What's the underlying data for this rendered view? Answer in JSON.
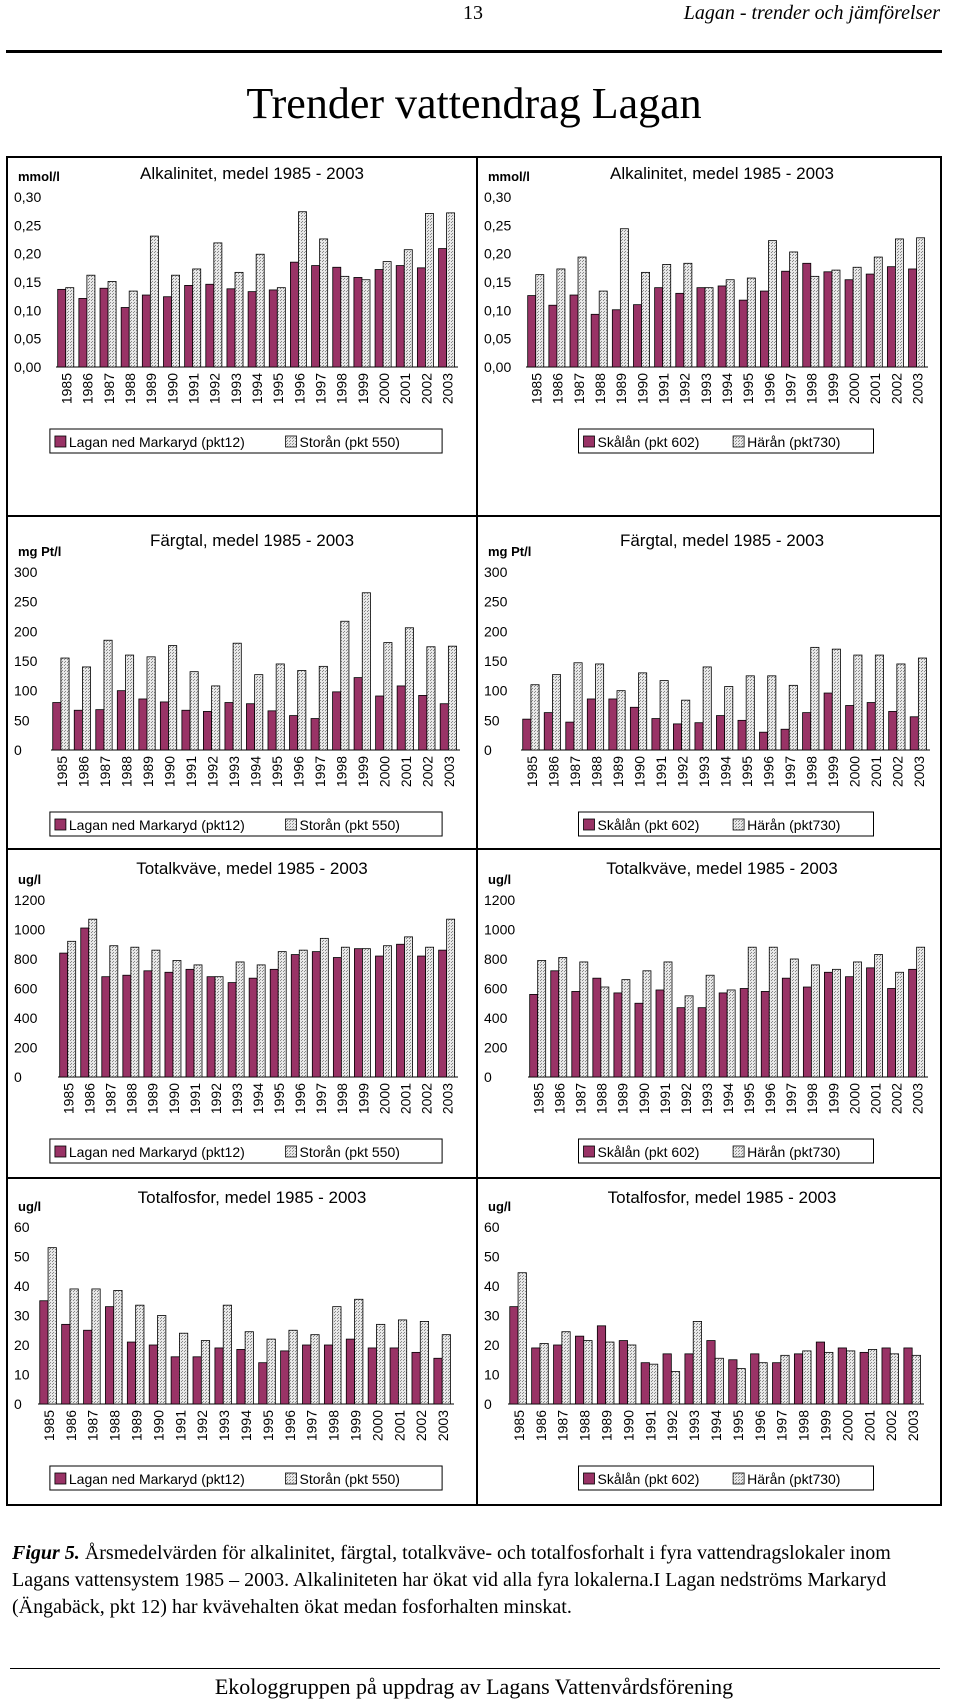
{
  "header": {
    "page_number": "13",
    "running_title": "Lagan - trender och jämförelser"
  },
  "title": "Trender vattendrag Lagan",
  "charts": [
    {
      "unit": "mmol/l",
      "title": "Alkalinitet, medel 1985 - 2003",
      "yticks": [
        "0,00",
        "0,05",
        "0,10",
        "0,15",
        "0,20",
        "0,25",
        "0,30"
      ],
      "ymax": 0.3,
      "series_names": [
        "Lagan ned Markaryd (pkt12)",
        "Storån (pkt 550)"
      ]
    },
    {
      "unit": "mmol/l",
      "title": "Alkalinitet, medel 1985 - 2003",
      "yticks": [
        "0,00",
        "0,05",
        "0,10",
        "0,15",
        "0,20",
        "0,25",
        "0,30"
      ],
      "ymax": 0.3,
      "series_names": [
        "Skålån (pkt 602)",
        "Härån (pkt730)"
      ]
    },
    {
      "unit": "mg Pt/l",
      "title": "Färgtal, medel 1985 - 2003",
      "yticks": [
        "0",
        "50",
        "100",
        "150",
        "200",
        "250",
        "300"
      ],
      "ymax": 300,
      "series_names": [
        "Lagan ned Markaryd (pkt12)",
        "Storån (pkt 550)"
      ]
    },
    {
      "unit": "mg Pt/l",
      "title": "Färgtal, medel 1985 - 2003",
      "yticks": [
        "0",
        "50",
        "100",
        "150",
        "200",
        "250",
        "300"
      ],
      "ymax": 300,
      "series_names": [
        "Skålån (pkt 602)",
        "Härån (pkt730)"
      ]
    },
    {
      "unit": "ug/l",
      "title": "Totalkväve, medel 1985 - 2003",
      "yticks": [
        "0",
        "200",
        "400",
        "600",
        "800",
        "1000",
        "1200"
      ],
      "ymax": 1200,
      "series_names": [
        "Lagan ned Markaryd (pkt12)",
        "Storån (pkt 550)"
      ]
    },
    {
      "unit": "ug/l",
      "title": "Totalkväve, medel 1985 - 2003",
      "yticks": [
        "0",
        "200",
        "400",
        "600",
        "800",
        "1000",
        "1200"
      ],
      "ymax": 1200,
      "series_names": [
        "Skålån (pkt 602)",
        "Härån (pkt730)"
      ]
    },
    {
      "unit": "ug/l",
      "title": "Totalfosfor, medel 1985 - 2003",
      "yticks": [
        "0",
        "10",
        "20",
        "30",
        "40",
        "50",
        "60"
      ],
      "ymax": 60,
      "series_names": [
        "Lagan ned Markaryd (pkt12)",
        "Storån (pkt 550)"
      ]
    },
    {
      "unit": "ug/l",
      "title": "Totalfosfor, medel 1985 - 2003",
      "yticks": [
        "0",
        "10",
        "20",
        "30",
        "40",
        "50",
        "60"
      ],
      "ymax": 60,
      "series_names": [
        "Skålån (pkt 602)",
        "Härån (pkt730)"
      ]
    }
  ],
  "chart_data": [
    {
      "type": "bar",
      "title": "Alkalinitet, medel 1985 - 2003",
      "ylabel": "mmol/l",
      "ylim": [
        0,
        0.3
      ],
      "categories": [
        "1985",
        "1986",
        "1987",
        "1988",
        "1989",
        "1990",
        "1991",
        "1992",
        "1993",
        "1994",
        "1995",
        "1996",
        "1997",
        "1998",
        "1999",
        "2000",
        "2001",
        "2002",
        "2003"
      ],
      "series": [
        {
          "name": "Lagan ned Markaryd (pkt12)",
          "values": [
            0.137,
            0.121,
            0.139,
            0.105,
            0.127,
            0.124,
            0.144,
            0.146,
            0.138,
            0.133,
            0.136,
            0.185,
            0.179,
            0.176,
            0.158,
            0.172,
            0.179,
            0.175,
            0.209
          ]
        },
        {
          "name": "Storån (pkt 550)",
          "values": [
            0.14,
            0.162,
            0.151,
            0.134,
            0.231,
            0.162,
            0.173,
            0.219,
            0.167,
            0.199,
            0.14,
            0.274,
            0.226,
            0.16,
            0.154,
            0.186,
            0.207,
            0.271,
            0.272
          ]
        }
      ]
    },
    {
      "type": "bar",
      "title": "Alkalinitet, medel 1985 - 2003",
      "ylabel": "mmol/l",
      "ylim": [
        0,
        0.3
      ],
      "categories": [
        "1985",
        "1986",
        "1987",
        "1988",
        "1989",
        "1990",
        "1991",
        "1992",
        "1993",
        "1994",
        "1995",
        "1996",
        "1997",
        "1998",
        "1999",
        "2000",
        "2001",
        "2002",
        "2003"
      ],
      "series": [
        {
          "name": "Skålån (pkt 602)",
          "values": [
            0.126,
            0.109,
            0.127,
            0.093,
            0.101,
            0.11,
            0.14,
            0.13,
            0.14,
            0.143,
            0.118,
            0.134,
            0.169,
            0.183,
            0.168,
            0.154,
            0.164,
            0.177,
            0.173
          ]
        },
        {
          "name": "Härån (pkt730)",
          "values": [
            0.163,
            0.173,
            0.194,
            0.134,
            0.244,
            0.167,
            0.181,
            0.183,
            0.14,
            0.154,
            0.157,
            0.223,
            0.203,
            0.16,
            0.171,
            0.176,
            0.194,
            0.226,
            0.228
          ]
        }
      ]
    },
    {
      "type": "bar",
      "title": "Färgtal, medel 1985 - 2003",
      "ylabel": "mg Pt/l",
      "ylim": [
        0,
        300
      ],
      "categories": [
        "1985",
        "1986",
        "1987",
        "1988",
        "1989",
        "1990",
        "1991",
        "1992",
        "1993",
        "1994",
        "1995",
        "1996",
        "1997",
        "1998",
        "1999",
        "2000",
        "2001",
        "2002",
        "2003"
      ],
      "series": [
        {
          "name": "Lagan ned Markaryd (pkt12)",
          "values": [
            80,
            67,
            68,
            100,
            86,
            81,
            67,
            65,
            80,
            78,
            66,
            58,
            53,
            98,
            122,
            91,
            108,
            92,
            78
          ]
        },
        {
          "name": "Storån (pkt 550)",
          "values": [
            155,
            140,
            185,
            160,
            157,
            176,
            132,
            108,
            180,
            127,
            145,
            134,
            141,
            217,
            265,
            181,
            206,
            174,
            175
          ]
        }
      ]
    },
    {
      "type": "bar",
      "title": "Färgtal, medel 1985 - 2003",
      "ylabel": "mg Pt/l",
      "ylim": [
        0,
        300
      ],
      "categories": [
        "1985",
        "1986",
        "1987",
        "1988",
        "1989",
        "1990",
        "1991",
        "1992",
        "1993",
        "1994",
        "1995",
        "1996",
        "1997",
        "1998",
        "1999",
        "2000",
        "2001",
        "2002",
        "2003"
      ],
      "series": [
        {
          "name": "Skålån (pkt 602)",
          "values": [
            52,
            63,
            47,
            86,
            86,
            72,
            53,
            44,
            46,
            58,
            50,
            30,
            35,
            63,
            96,
            75,
            80,
            65,
            56
          ]
        },
        {
          "name": "Härån (pkt730)",
          "values": [
            110,
            127,
            147,
            145,
            100,
            130,
            117,
            84,
            140,
            107,
            125,
            125,
            109,
            173,
            170,
            160,
            160,
            145,
            155
          ]
        }
      ]
    },
    {
      "type": "bar",
      "title": "Totalkväve, medel 1985 - 2003",
      "ylabel": "ug/l",
      "ylim": [
        0,
        1200
      ],
      "categories": [
        "1985",
        "1986",
        "1987",
        "1988",
        "1989",
        "1990",
        "1991",
        "1992",
        "1993",
        "1994",
        "1995",
        "1996",
        "1997",
        "1998",
        "1999",
        "2000",
        "2001",
        "2002",
        "2003"
      ],
      "series": [
        {
          "name": "Lagan ned Markaryd (pkt12)",
          "values": [
            840,
            1010,
            680,
            690,
            720,
            710,
            730,
            680,
            640,
            670,
            730,
            830,
            850,
            810,
            870,
            820,
            900,
            820,
            860
          ]
        },
        {
          "name": "Storån (pkt 550)",
          "values": [
            920,
            1070,
            890,
            880,
            860,
            790,
            760,
            680,
            780,
            760,
            850,
            860,
            940,
            880,
            870,
            890,
            950,
            880,
            1070
          ]
        }
      ]
    },
    {
      "type": "bar",
      "title": "Totalkväve, medel 1985 - 2003",
      "ylabel": "ug/l",
      "ylim": [
        0,
        1200
      ],
      "categories": [
        "1985",
        "1986",
        "1987",
        "1988",
        "1989",
        "1990",
        "1991",
        "1992",
        "1993",
        "1994",
        "1995",
        "1996",
        "1997",
        "1998",
        "1999",
        "2000",
        "2001",
        "2002",
        "2003"
      ],
      "series": [
        {
          "name": "Skålån (pkt 602)",
          "values": [
            560,
            720,
            580,
            670,
            570,
            500,
            590,
            470,
            470,
            570,
            600,
            580,
            670,
            610,
            710,
            680,
            740,
            600,
            730
          ]
        },
        {
          "name": "Härån (pkt730)",
          "values": [
            790,
            810,
            780,
            610,
            660,
            720,
            780,
            550,
            690,
            590,
            880,
            880,
            800,
            760,
            730,
            780,
            830,
            710,
            880
          ]
        }
      ]
    },
    {
      "type": "bar",
      "title": "Totalfosfor, medel 1985 - 2003",
      "ylabel": "ug/l",
      "ylim": [
        0,
        60
      ],
      "categories": [
        "1985",
        "1986",
        "1987",
        "1988",
        "1989",
        "1990",
        "1991",
        "1992",
        "1993",
        "1994",
        "1995",
        "1996",
        "1997",
        "1998",
        "1999",
        "2000",
        "2001",
        "2002",
        "2003"
      ],
      "series": [
        {
          "name": "Lagan ned Markaryd (pkt12)",
          "values": [
            35,
            27,
            25,
            33,
            21,
            20,
            16,
            16,
            19,
            18.5,
            14,
            18,
            20,
            20,
            22,
            19,
            19,
            17.5,
            15.5
          ]
        },
        {
          "name": "Storån (pkt 550)",
          "values": [
            53,
            39,
            39,
            38.5,
            33.5,
            30,
            24,
            21.5,
            33.5,
            24.5,
            22,
            25,
            23.5,
            33,
            35.5,
            27,
            28.5,
            28,
            23.5
          ]
        }
      ]
    },
    {
      "type": "bar",
      "title": "Totalfosfor, medel 1985 - 2003",
      "ylabel": "ug/l",
      "ylim": [
        0,
        60
      ],
      "categories": [
        "1985",
        "1986",
        "1987",
        "1988",
        "1989",
        "1990",
        "1991",
        "1992",
        "1993",
        "1994",
        "1995",
        "1996",
        "1997",
        "1998",
        "1999",
        "2000",
        "2001",
        "2002",
        "2003"
      ],
      "series": [
        {
          "name": "Skålån (pkt 602)",
          "values": [
            33,
            19,
            20,
            23,
            26.5,
            21.5,
            14,
            17,
            17,
            21.5,
            15,
            17,
            14,
            17,
            21,
            19,
            17.5,
            19,
            19
          ]
        },
        {
          "name": "Härån (pkt730)",
          "values": [
            44.5,
            20.5,
            24.5,
            21.5,
            21,
            20,
            13.5,
            11,
            28,
            15.5,
            12,
            14,
            16.5,
            18,
            17.5,
            18,
            18.5,
            17,
            16.5
          ]
        }
      ]
    }
  ],
  "caption": {
    "label": "Figur 5.",
    "text": " Årsmedelvärden för alkalinitet, färgtal, totalkväve- och totalfosforhalt i fyra vattendragslokaler inom Lagans vattensystem 1985 – 2003. Alkaliniteten har ökat vid alla fyra lokalerna.I Lagan nedströms Markaryd (Ängabäck, pkt 12) har kvävehalten ökat medan fosforhalten minskat."
  },
  "footer": "Ekologgruppen på uppdrag av Lagans Vattenvårdsförening",
  "colors": {
    "series1": "#993366",
    "series2": "#e8e8e8",
    "series2_pattern": "#888888"
  }
}
